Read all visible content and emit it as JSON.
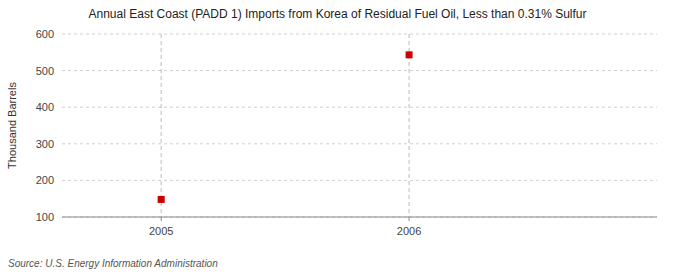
{
  "chart_data": {
    "type": "scatter",
    "title": "Annual East Coast (PADD 1) Imports from Korea of Residual Fuel Oil, Less than 0.31% Sulfur",
    "y_label": "Thousand Barrels",
    "annotations": [
      "Source: U.S. Energy Information Administration"
    ],
    "x": [
      2005.0,
      2006.0
    ],
    "values": [
      148,
      543
    ],
    "color": "#cc0000",
    "marker": "square",
    "xlim": [
      2004.6,
      2007.0
    ],
    "xticks": [
      2005,
      2006
    ],
    "ylim": [
      100,
      600
    ],
    "yticks": [
      100,
      200,
      300,
      400,
      500,
      600
    ],
    "grid": true
  }
}
